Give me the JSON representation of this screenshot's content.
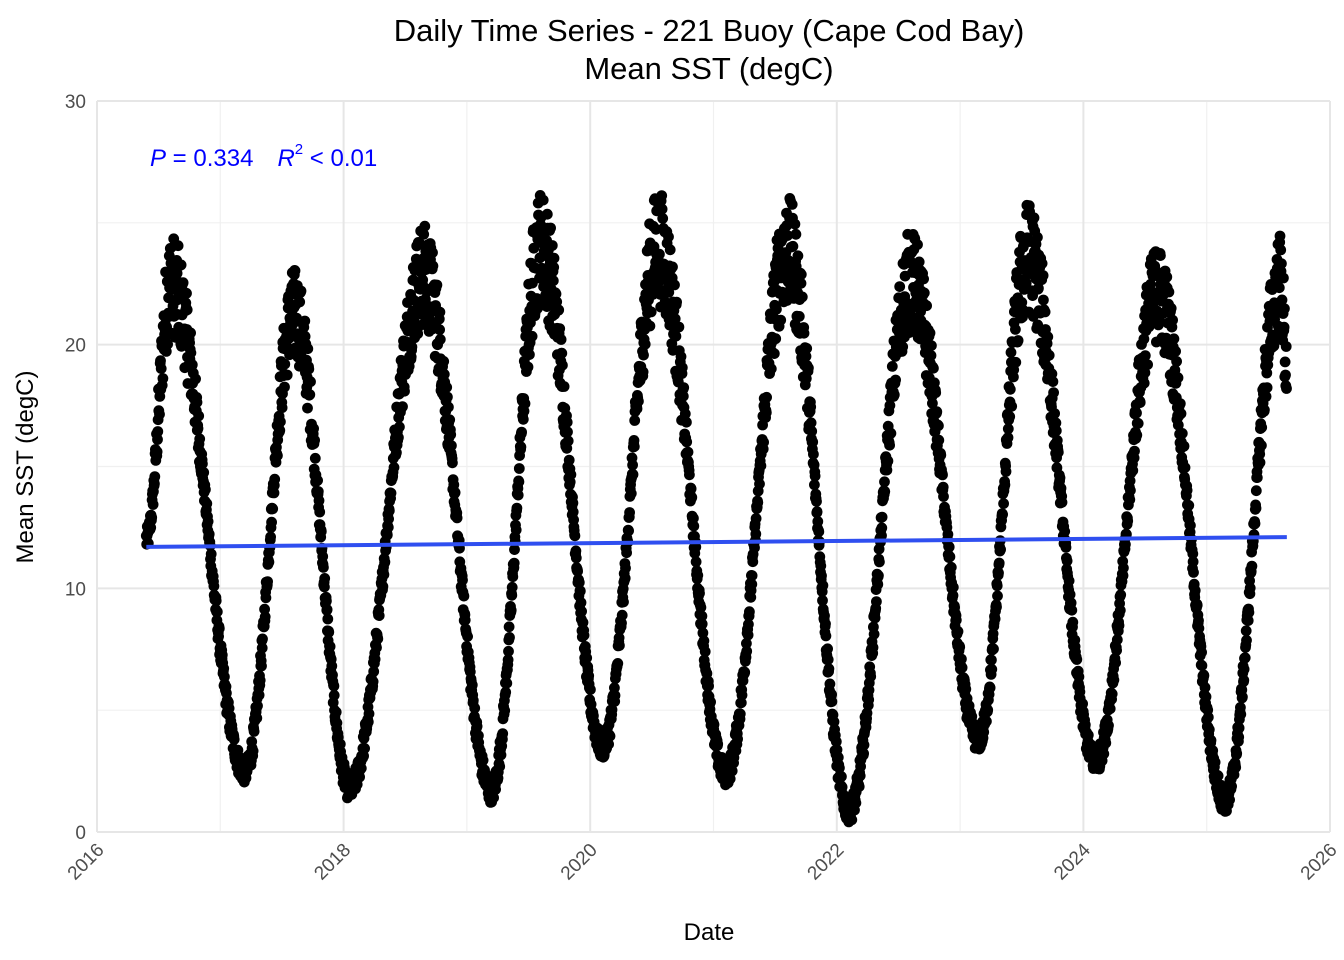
{
  "chart_data": {
    "type": "scatter",
    "title": "Daily Time Series - 221 Buoy (Cape Cod Bay)",
    "subtitle": "Mean SST (degC)",
    "xlabel": "Date",
    "ylabel": "Mean SST (degC)",
    "x_ticks": [
      "2016",
      "2018",
      "2020",
      "2022",
      "2024",
      "2026"
    ],
    "y_ticks": [
      "0",
      "10",
      "20",
      "30"
    ],
    "xlim": [
      2016.0,
      2026.0
    ],
    "ylim": [
      0,
      30
    ],
    "grid": true,
    "point_color": "#000000",
    "trend_color": "#2f4ff0",
    "annotation_color": "#0000ff",
    "annotation": {
      "p_symbol": "P",
      "p_text": " = 0.334",
      "r_symbol": "R",
      "r_exp": "2",
      "r_text": " < 0.01"
    },
    "trend_line": {
      "x": [
        2016.4,
        2025.65
      ],
      "y": [
        11.7,
        12.1
      ]
    },
    "seasonal_extremes": [
      {
        "x": 2016.4,
        "y": 12.0
      },
      {
        "x": 2016.6,
        "y": 22.5
      },
      {
        "x": 2017.2,
        "y": 2.5
      },
      {
        "x": 2017.6,
        "y": 21.3
      },
      {
        "x": 2018.05,
        "y": 1.8
      },
      {
        "x": 2018.65,
        "y": 22.8
      },
      {
        "x": 2019.2,
        "y": 1.7
      },
      {
        "x": 2019.6,
        "y": 24.0
      },
      {
        "x": 2020.1,
        "y": 3.5
      },
      {
        "x": 2020.55,
        "y": 24.0
      },
      {
        "x": 2021.1,
        "y": 2.4
      },
      {
        "x": 2021.6,
        "y": 23.8
      },
      {
        "x": 2022.1,
        "y": 0.9
      },
      {
        "x": 2022.6,
        "y": 22.6
      },
      {
        "x": 2023.15,
        "y": 3.8
      },
      {
        "x": 2023.55,
        "y": 23.6
      },
      {
        "x": 2024.1,
        "y": 2.9
      },
      {
        "x": 2024.6,
        "y": 22.1
      },
      {
        "x": 2025.15,
        "y": 1.3
      },
      {
        "x": 2025.6,
        "y": 22.5
      },
      {
        "x": 2025.65,
        "y": 19.0
      }
    ]
  }
}
